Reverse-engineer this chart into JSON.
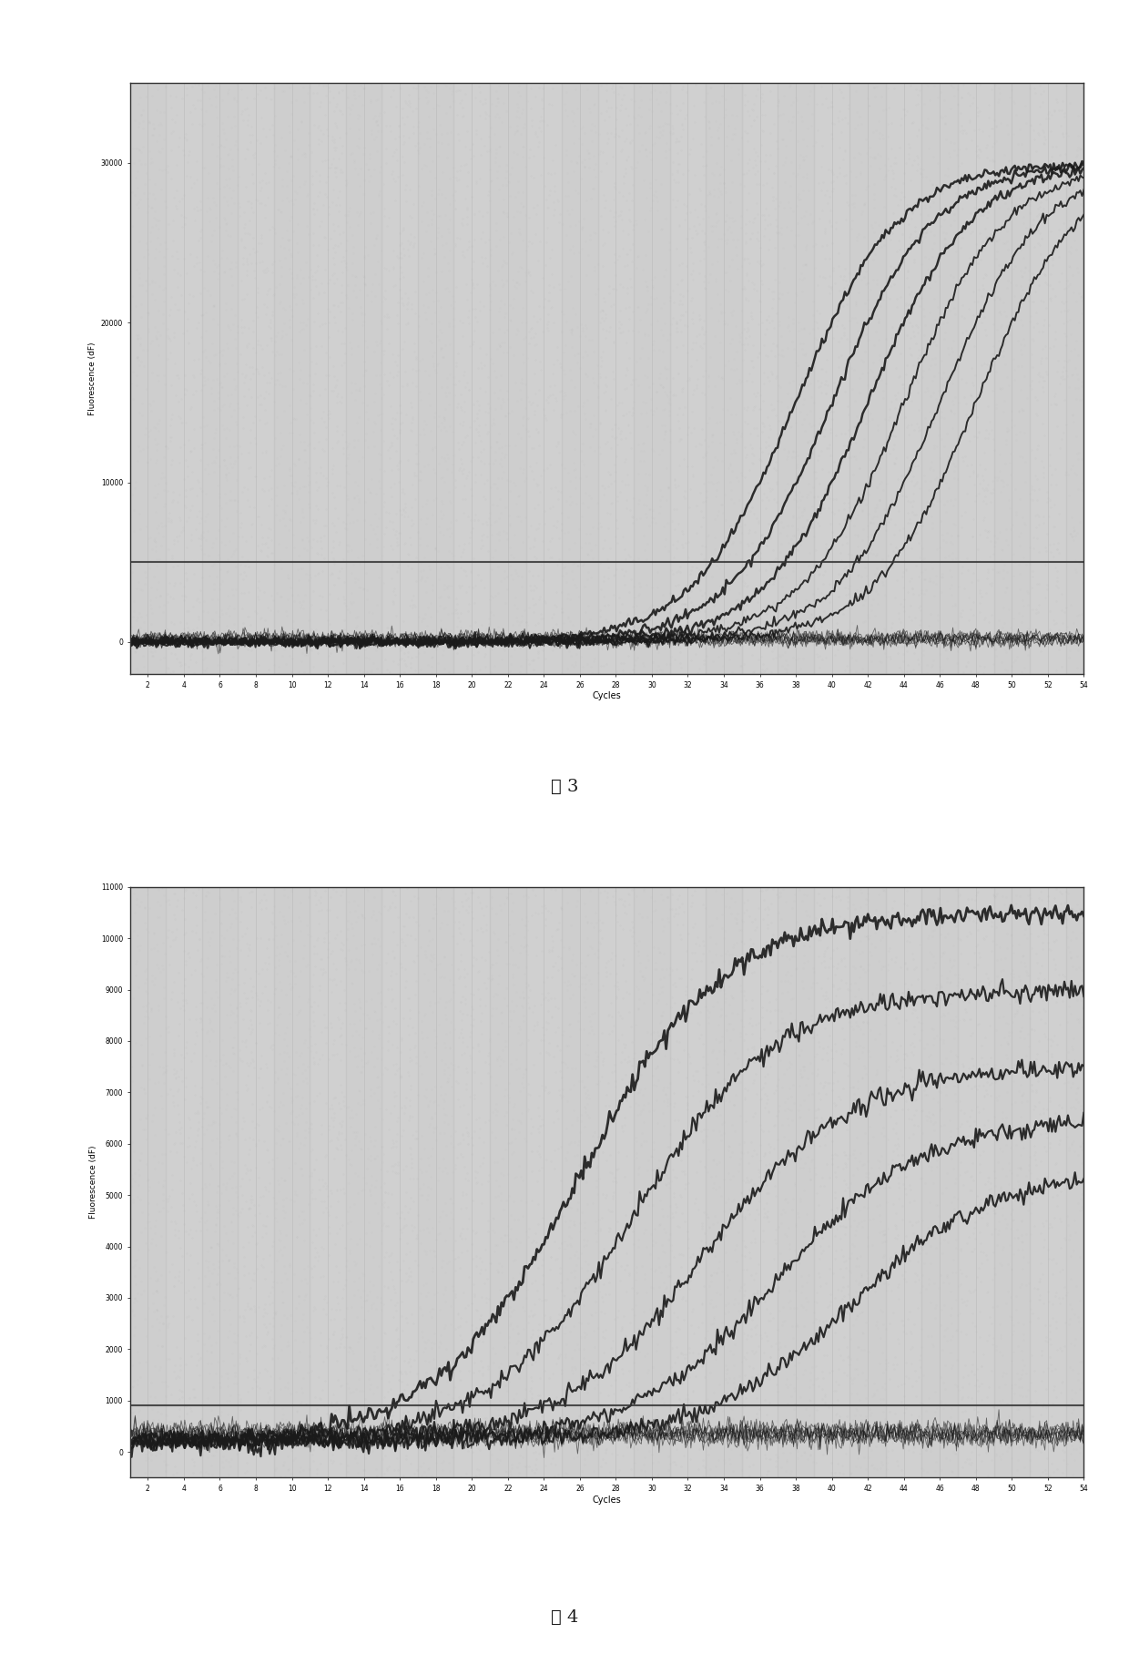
{
  "fig3": {
    "title": "",
    "xlabel": "Cycles",
    "ylabel": "Fluorescence (dF)",
    "xlim": [
      1,
      54
    ],
    "ylim": [
      -2000,
      35000
    ],
    "yticks": [
      0,
      10000,
      20000,
      30000
    ],
    "xticks": [
      2,
      4,
      6,
      8,
      10,
      12,
      14,
      16,
      18,
      20,
      22,
      24,
      26,
      28,
      30,
      32,
      34,
      36,
      38,
      40,
      42,
      44,
      46,
      48,
      50,
      52,
      54
    ],
    "threshold": 5000,
    "num_curves": 6,
    "sigmoid_midpoints": [
      38,
      40,
      42,
      44,
      46,
      48
    ],
    "sigmoid_steepness": 0.35,
    "ymax": 30000,
    "ymin": 0,
    "noise_level": 300,
    "background_color": "#c8c8c8",
    "plot_bg": "#d4d4d4",
    "curve_color": "#1a1a1a",
    "threshold_color": "#333333",
    "figure_label": "图 3"
  },
  "fig4": {
    "title": "",
    "xlabel": "Cycles",
    "ylabel": "Fluorescence (dF)",
    "xlim": [
      1,
      54
    ],
    "ylim": [
      -500,
      11000
    ],
    "yticks": [
      0,
      1000,
      2000,
      3000,
      4000,
      5000,
      6000,
      7000,
      8000,
      9000,
      10000,
      11000
    ],
    "xticks": [
      2,
      4,
      6,
      8,
      10,
      12,
      14,
      16,
      18,
      20,
      22,
      24,
      26,
      28,
      30,
      32,
      34,
      36,
      38,
      40,
      42,
      44,
      46,
      48,
      50,
      52,
      54
    ],
    "threshold": 900,
    "num_curves": 5,
    "sigmoid_midpoints": [
      26,
      29,
      33,
      37,
      41
    ],
    "sigmoid_steepness": 0.25,
    "ymax": 10500,
    "ymin": 200,
    "noise_level": 150,
    "background_color": "#c8c8c8",
    "plot_bg": "#d4d4d4",
    "curve_color": "#1a1a1a",
    "threshold_color": "#333333",
    "figure_label": "图 4"
  },
  "outer_bg": "#2a2a2a",
  "inner_bg": "#c8c8c8",
  "border_color": "#1a1a1a"
}
